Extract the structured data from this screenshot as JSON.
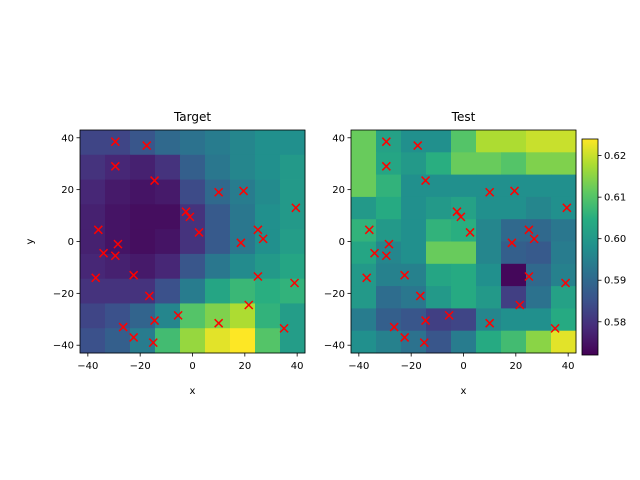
{
  "chart_data": [
    {
      "type": "heatmap",
      "title": "Target",
      "xlabel": "x",
      "ylabel": "y",
      "xlim": [
        -43,
        43
      ],
      "ylim": [
        -43,
        43
      ],
      "x_ticks": [
        -40,
        -20,
        0,
        20,
        40
      ],
      "y_ticks": [
        -40,
        -20,
        0,
        20,
        40
      ],
      "grid": "off",
      "color_range": [
        0.572,
        0.624
      ],
      "grid_values": [
        [
          0.583,
          0.583,
          0.586,
          0.59,
          0.592,
          0.594,
          0.596,
          0.598,
          0.598
        ],
        [
          0.58,
          0.578,
          0.577,
          0.58,
          0.588,
          0.593,
          0.596,
          0.598,
          0.6
        ],
        [
          0.578,
          0.576,
          0.575,
          0.576,
          0.584,
          0.59,
          0.594,
          0.597,
          0.6
        ],
        [
          0.577,
          0.575,
          0.574,
          0.574,
          0.58,
          0.587,
          0.593,
          0.598,
          0.6
        ],
        [
          0.577,
          0.575,
          0.574,
          0.575,
          0.58,
          0.587,
          0.593,
          0.598,
          0.601
        ],
        [
          0.578,
          0.577,
          0.576,
          0.578,
          0.586,
          0.593,
          0.597,
          0.6,
          0.603
        ],
        [
          0.58,
          0.58,
          0.58,
          0.585,
          0.594,
          0.603,
          0.607,
          0.605,
          0.606
        ],
        [
          0.583,
          0.585,
          0.589,
          0.596,
          0.61,
          0.614,
          0.618,
          0.606,
          0.601
        ],
        [
          0.585,
          0.588,
          0.594,
          0.608,
          0.616,
          0.622,
          0.624,
          0.61,
          0.601
        ]
      ],
      "points": [
        {
          "x": -29.5,
          "y": 38.5
        },
        {
          "x": -17.5,
          "y": 37
        },
        {
          "x": -29.5,
          "y": 29
        },
        {
          "x": -14.5,
          "y": 23.5
        },
        {
          "x": 10,
          "y": 19
        },
        {
          "x": 19.5,
          "y": 19.5
        },
        {
          "x": 39.5,
          "y": 13
        },
        {
          "x": -2.5,
          "y": 11.5
        },
        {
          "x": -1,
          "y": 9.5
        },
        {
          "x": 2.5,
          "y": 3.5
        },
        {
          "x": 25,
          "y": 4.5
        },
        {
          "x": 27,
          "y": 1
        },
        {
          "x": 18.5,
          "y": -0.5
        },
        {
          "x": -36,
          "y": 4.5
        },
        {
          "x": -28.5,
          "y": -1
        },
        {
          "x": -34,
          "y": -4.5
        },
        {
          "x": -29.5,
          "y": -5.5
        },
        {
          "x": -37,
          "y": -14
        },
        {
          "x": -22.5,
          "y": -13
        },
        {
          "x": 25,
          "y": -13.5
        },
        {
          "x": 39,
          "y": -16
        },
        {
          "x": -16.5,
          "y": -21
        },
        {
          "x": 21.5,
          "y": -24.5
        },
        {
          "x": -5.5,
          "y": -28.5
        },
        {
          "x": -14.5,
          "y": -30.5
        },
        {
          "x": 10,
          "y": -31.5
        },
        {
          "x": -26.5,
          "y": -33
        },
        {
          "x": 35,
          "y": -33.5
        },
        {
          "x": -22.5,
          "y": -37
        },
        {
          "x": -15,
          "y": -39
        }
      ]
    },
    {
      "type": "heatmap",
      "title": "Test",
      "xlabel": "x",
      "ylabel": "",
      "xlim": [
        -43,
        43
      ],
      "ylim": [
        -43,
        43
      ],
      "x_ticks": [
        -40,
        -20,
        0,
        20,
        40
      ],
      "y_ticks": [
        -40,
        -20,
        0,
        20,
        40
      ],
      "grid": "off",
      "color_range": [
        0.572,
        0.624
      ],
      "colorbar_ticks": [
        0.58,
        0.59,
        0.6,
        0.61,
        0.62
      ],
      "colorbar_placement": "right",
      "grid_values": [
        [
          0.612,
          0.602,
          0.598,
          0.598,
          0.61,
          0.618,
          0.618,
          0.62,
          0.62
        ],
        [
          0.612,
          0.603,
          0.6,
          0.605,
          0.612,
          0.612,
          0.61,
          0.614,
          0.614
        ],
        [
          0.612,
          0.606,
          0.598,
          0.598,
          0.598,
          0.598,
          0.598,
          0.598,
          0.598
        ],
        [
          0.6,
          0.604,
          0.598,
          0.6,
          0.602,
          0.598,
          0.598,
          0.596,
          0.598
        ],
        [
          0.606,
          0.6,
          0.598,
          0.606,
          0.605,
          0.596,
          0.59,
          0.59,
          0.593
        ],
        [
          0.603,
          0.596,
          0.598,
          0.612,
          0.612,
          0.596,
          0.588,
          0.587,
          0.594
        ],
        [
          0.6,
          0.595,
          0.595,
          0.603,
          0.604,
          0.598,
          0.573,
          0.59,
          0.595
        ],
        [
          0.6,
          0.591,
          0.593,
          0.6,
          0.604,
          0.6,
          0.582,
          0.592,
          0.602
        ],
        [
          0.594,
          0.588,
          0.586,
          0.582,
          0.583,
          0.596,
          0.598,
          0.598,
          0.604
        ],
        [
          0.598,
          0.595,
          0.592,
          0.586,
          0.594,
          0.604,
          0.608,
          0.615,
          0.622
        ]
      ],
      "points": [
        {
          "x": -29.5,
          "y": 38.5
        },
        {
          "x": -17.5,
          "y": 37
        },
        {
          "x": -29.5,
          "y": 29
        },
        {
          "x": -14.5,
          "y": 23.5
        },
        {
          "x": 10,
          "y": 19
        },
        {
          "x": 19.5,
          "y": 19.5
        },
        {
          "x": 39.5,
          "y": 13
        },
        {
          "x": -2.5,
          "y": 11.5
        },
        {
          "x": -1,
          "y": 9.5
        },
        {
          "x": 2.5,
          "y": 3.5
        },
        {
          "x": 25,
          "y": 4.5
        },
        {
          "x": 27,
          "y": 1
        },
        {
          "x": 18.5,
          "y": -0.5
        },
        {
          "x": -36,
          "y": 4.5
        },
        {
          "x": -28.5,
          "y": -1
        },
        {
          "x": -34,
          "y": -4.5
        },
        {
          "x": -29.5,
          "y": -5.5
        },
        {
          "x": -37,
          "y": -14
        },
        {
          "x": -22.5,
          "y": -13
        },
        {
          "x": 25,
          "y": -13.5
        },
        {
          "x": 39,
          "y": -16
        },
        {
          "x": -16.5,
          "y": -21
        },
        {
          "x": 21.5,
          "y": -24.5
        },
        {
          "x": -5.5,
          "y": -28.5
        },
        {
          "x": -14.5,
          "y": -30.5
        },
        {
          "x": 10,
          "y": -31.5
        },
        {
          "x": -26.5,
          "y": -33
        },
        {
          "x": 35,
          "y": -33.5
        },
        {
          "x": -22.5,
          "y": -37
        },
        {
          "x": -15,
          "y": -39
        }
      ]
    }
  ],
  "colors": {
    "marker": "#ff0000",
    "colormap": "viridis"
  }
}
